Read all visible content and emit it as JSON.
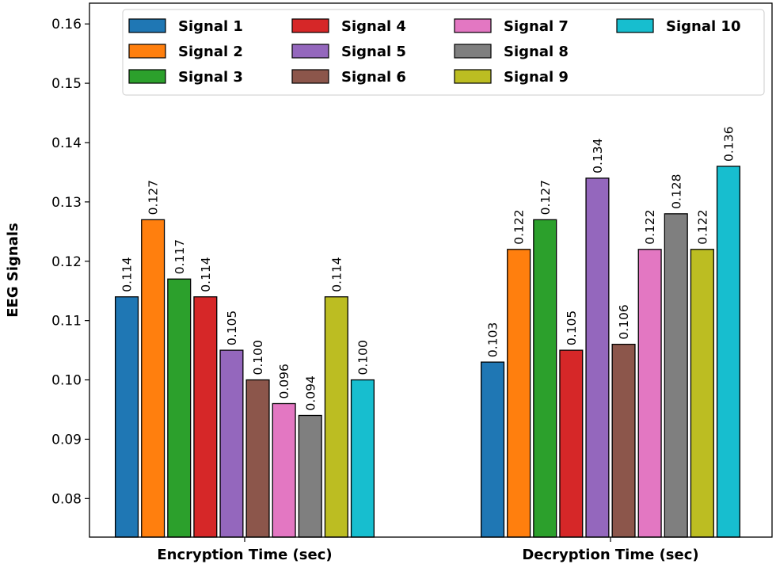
{
  "chart_data": {
    "type": "bar",
    "title": "",
    "xlabel": "",
    "ylabel": "EEG Signals",
    "ylim": [
      0.0735,
      0.1635
    ],
    "yticks": [
      "0.08",
      "0.09",
      "0.10",
      "0.11",
      "0.12",
      "0.13",
      "0.14",
      "0.15",
      "0.16"
    ],
    "categories": [
      "Encryption Time (sec)",
      "Decryption Time (sec)"
    ],
    "legend_position": "top-right",
    "series": [
      {
        "name": "Signal 1",
        "color": "#1f77b4",
        "values": [
          0.114,
          0.103
        ]
      },
      {
        "name": "Signal 2",
        "color": "#ff7f0e",
        "values": [
          0.127,
          0.122
        ]
      },
      {
        "name": "Signal 3",
        "color": "#2ca02c",
        "values": [
          0.117,
          0.127
        ]
      },
      {
        "name": "Signal 4",
        "color": "#d62728",
        "values": [
          0.114,
          0.105
        ]
      },
      {
        "name": "Signal 5",
        "color": "#9467bd",
        "values": [
          0.105,
          0.134
        ]
      },
      {
        "name": "Signal 6",
        "color": "#8c564b",
        "values": [
          0.1,
          0.106
        ]
      },
      {
        "name": "Signal 7",
        "color": "#e377c2",
        "values": [
          0.096,
          0.122
        ]
      },
      {
        "name": "Signal 8",
        "color": "#7f7f7f",
        "values": [
          0.094,
          0.128
        ]
      },
      {
        "name": "Signal 9",
        "color": "#bcbd22",
        "values": [
          0.114,
          0.122
        ]
      },
      {
        "name": "Signal 10",
        "color": "#17becf",
        "values": [
          0.1,
          0.136
        ]
      }
    ],
    "data_labels": [
      [
        "0.114",
        "0.127",
        "0.117",
        "0.114",
        "0.105",
        "0.100",
        "0.096",
        "0.094",
        "0.114",
        "0.100"
      ],
      [
        "0.103",
        "0.122",
        "0.127",
        "0.105",
        "0.134",
        "0.106",
        "0.122",
        "0.128",
        "0.122",
        "0.136"
      ]
    ]
  }
}
